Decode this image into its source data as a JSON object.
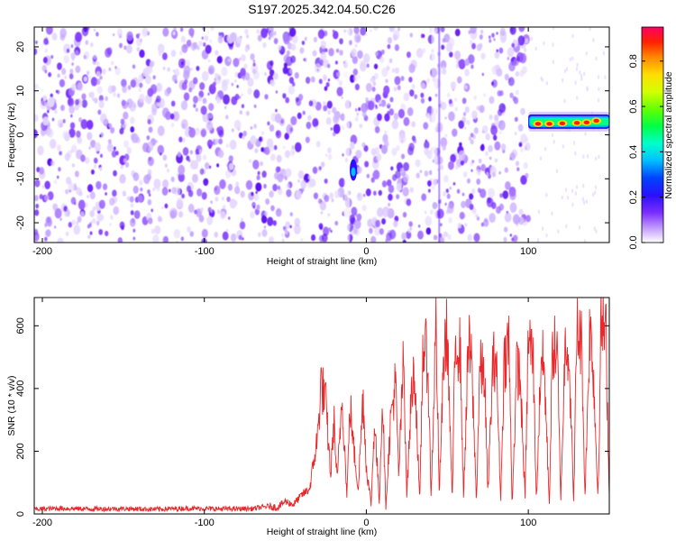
{
  "figure_title": "S197.2025.342.04.50.C26",
  "chart_data": [
    {
      "type": "heatmap",
      "title": "S197.2025.342.04.50.C26",
      "xlabel": "Height of straight line (km)",
      "ylabel": "Frequency (Hz)",
      "xlim": [
        -205,
        150
      ],
      "ylim": [
        -24.5,
        24.5
      ],
      "xticks": [
        -200,
        -100,
        0,
        100
      ],
      "yticks": [
        -20,
        -10,
        0,
        10,
        20
      ],
      "colorbar": {
        "label": "Normalized spectral amplitude",
        "range": [
          0,
          0.95
        ],
        "ticks": [
          0.0,
          0.2,
          0.4,
          0.6,
          0.8
        ]
      },
      "regions": [
        {
          "description": "Broadband background noise",
          "x_range": [
            -205,
            100
          ],
          "freq_range": [
            -24.5,
            24.5
          ],
          "amplitude_range": [
            0.0,
            0.2
          ]
        },
        {
          "description": "Isolated peak",
          "x": -8,
          "freq": -8,
          "amplitude": 0.3
        },
        {
          "description": "Narrow-band signal",
          "x_range": [
            100,
            150
          ],
          "freq": 3,
          "amplitude_range": [
            0.3,
            0.95
          ]
        }
      ],
      "signal_peaks": [
        {
          "x": 106,
          "freq": 2.5,
          "amplitude": 0.9
        },
        {
          "x": 113,
          "freq": 2.5,
          "amplitude": 0.92
        },
        {
          "x": 121,
          "freq": 2.6,
          "amplitude": 0.9
        },
        {
          "x": 130,
          "freq": 2.7,
          "amplitude": 0.88
        },
        {
          "x": 136,
          "freq": 2.8,
          "amplitude": 0.9
        },
        {
          "x": 142,
          "freq": 3.2,
          "amplitude": 0.93
        }
      ]
    },
    {
      "type": "line",
      "title": "",
      "xlabel": "Height of straight line (km)",
      "ylabel": "SNR (10 * v/v)",
      "xlim": [
        -205,
        150
      ],
      "ylim": [
        0,
        690
      ],
      "xticks": [
        -200,
        -100,
        0,
        100
      ],
      "yticks": [
        0,
        200,
        400,
        600
      ],
      "series": [
        {
          "name": "SNR",
          "color": "#e8282a",
          "x": [
            -205,
            -190,
            -170,
            -150,
            -130,
            -110,
            -90,
            -70,
            -60,
            -55,
            -50,
            -45,
            -40,
            -35,
            -30,
            -28,
            -25,
            -22,
            -20,
            -18,
            -15,
            -12,
            -10,
            -8,
            -5,
            -2,
            0,
            3,
            5,
            8,
            10,
            12,
            15,
            18,
            20,
            23,
            25,
            28,
            30,
            33,
            35,
            38,
            40,
            43,
            45,
            48,
            50,
            53,
            55,
            58,
            60,
            63,
            65,
            68,
            70,
            73,
            75,
            78,
            80,
            83,
            85,
            88,
            90,
            93,
            95,
            98,
            100,
            103,
            105,
            108,
            110,
            113,
            115,
            118,
            120,
            123,
            125,
            128,
            130,
            133,
            135,
            138,
            140,
            143,
            145,
            148,
            150
          ],
          "y": [
            15,
            18,
            16,
            17,
            15,
            18,
            16,
            17,
            25,
            20,
            40,
            30,
            60,
            80,
            250,
            420,
            350,
            120,
            300,
            100,
            380,
            60,
            350,
            220,
            80,
            380,
            150,
            30,
            300,
            40,
            380,
            20,
            300,
            420,
            120,
            500,
            60,
            400,
            450,
            30,
            550,
            480,
            50,
            620,
            60,
            520,
            580,
            40,
            560,
            520,
            50,
            540,
            480,
            40,
            460,
            450,
            60,
            460,
            520,
            40,
            480,
            560,
            30,
            480,
            430,
            50,
            560,
            500,
            40,
            520,
            440,
            30,
            540,
            500,
            40,
            580,
            520,
            40,
            590,
            540,
            50,
            600,
            480,
            50,
            620,
            560,
            60
          ]
        }
      ]
    }
  ]
}
